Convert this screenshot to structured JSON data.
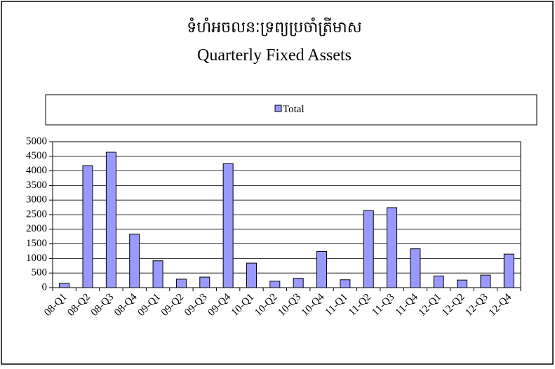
{
  "chart_data": {
    "type": "bar",
    "title": "ទំហំអចលនៈទ្រព្យប្រចាំត្រីមាស",
    "subtitle": "Quarterly Fixed Assets",
    "categories": [
      "08-Q1",
      "08-Q2",
      "08-Q3",
      "08-Q4",
      "09-Q1",
      "09-Q2",
      "09-Q3",
      "09-Q4",
      "10-Q1",
      "10-Q2",
      "10-Q3",
      "10-Q4",
      "11-Q1",
      "11-Q2",
      "11-Q3",
      "11-Q4",
      "12-Q1",
      "12-Q2",
      "12-Q3",
      "12-Q4"
    ],
    "series": [
      {
        "name": "Total",
        "color": "#9999ff",
        "values": [
          150,
          4180,
          4640,
          1830,
          920,
          290,
          360,
          4250,
          840,
          220,
          320,
          1240,
          270,
          2640,
          2740,
          1330,
          400,
          260,
          430,
          1150
        ]
      }
    ],
    "ylim": [
      0,
      5000
    ],
    "yticks": [
      0,
      500,
      1000,
      1500,
      2000,
      2500,
      3000,
      3500,
      4000,
      4500,
      5000
    ],
    "grid": true,
    "legend": "top"
  }
}
